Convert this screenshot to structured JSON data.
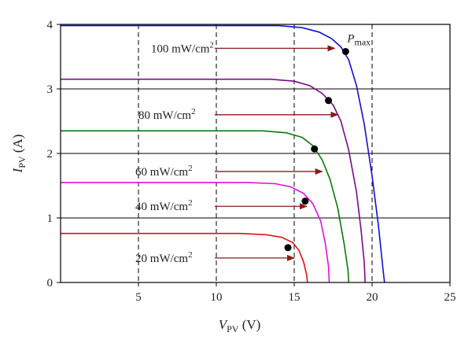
{
  "chart_data": {
    "type": "line",
    "xlabel": {
      "main": "V",
      "sub": "PV",
      "unit": " (V)"
    },
    "ylabel": {
      "main": "I",
      "sub": "PV",
      "unit": " (A)"
    },
    "xlim": [
      0,
      25
    ],
    "ylim": [
      0,
      4
    ],
    "x_ticks": [
      5,
      10,
      15,
      20,
      25
    ],
    "y_ticks": [
      0,
      1,
      2,
      3,
      4
    ],
    "vertical_dashed_gridlines": [
      5,
      10,
      15,
      20
    ],
    "horizontal_gridlines": [
      1,
      2,
      3
    ],
    "colors": {
      "arrow": "#8b1a1a",
      "mpp_dot": "#000000"
    },
    "pmax_label": {
      "main": "P",
      "sub": "max"
    },
    "series": [
      {
        "irradiance": "100",
        "color": "#1010d0",
        "points": [
          [
            0,
            3.98
          ],
          [
            14.0,
            3.98
          ],
          [
            15.5,
            3.95
          ],
          [
            16.6,
            3.88
          ],
          [
            17.4,
            3.78
          ],
          [
            18.0,
            3.65
          ],
          [
            18.5,
            3.45
          ],
          [
            19.0,
            3.05
          ],
          [
            19.5,
            2.45
          ],
          [
            20.0,
            1.65
          ],
          [
            20.4,
            0.9
          ],
          [
            20.7,
            0.2
          ],
          [
            20.8,
            0
          ]
        ],
        "mpp": [
          18.3,
          3.58
        ]
      },
      {
        "irradiance": "80",
        "color": "#7a0a8a",
        "points": [
          [
            0,
            3.15
          ],
          [
            13.5,
            3.15
          ],
          [
            15.0,
            3.12
          ],
          [
            16.0,
            3.05
          ],
          [
            16.8,
            2.93
          ],
          [
            17.5,
            2.75
          ],
          [
            18.0,
            2.5
          ],
          [
            18.5,
            2.05
          ],
          [
            19.0,
            1.4
          ],
          [
            19.3,
            0.8
          ],
          [
            19.5,
            0.3
          ],
          [
            19.55,
            0
          ]
        ],
        "mpp": [
          17.2,
          2.82
        ]
      },
      {
        "irradiance": "60",
        "color": "#0a7a0a",
        "points": [
          [
            0,
            2.35
          ],
          [
            13.0,
            2.35
          ],
          [
            14.5,
            2.32
          ],
          [
            15.5,
            2.25
          ],
          [
            16.2,
            2.12
          ],
          [
            16.8,
            1.9
          ],
          [
            17.3,
            1.6
          ],
          [
            17.8,
            1.15
          ],
          [
            18.2,
            0.6
          ],
          [
            18.45,
            0.2
          ],
          [
            18.5,
            0
          ]
        ],
        "mpp": [
          16.3,
          2.07
        ]
      },
      {
        "irradiance": "40",
        "color": "#e010e0",
        "points": [
          [
            0,
            1.55
          ],
          [
            12.0,
            1.55
          ],
          [
            13.8,
            1.53
          ],
          [
            14.8,
            1.48
          ],
          [
            15.6,
            1.38
          ],
          [
            16.2,
            1.22
          ],
          [
            16.7,
            0.95
          ],
          [
            17.0,
            0.6
          ],
          [
            17.2,
            0.25
          ],
          [
            17.25,
            0
          ]
        ],
        "mpp": [
          15.7,
          1.26
        ]
      },
      {
        "irradiance": "20",
        "color": "#e01010",
        "points": [
          [
            0,
            0.76
          ],
          [
            11.5,
            0.76
          ],
          [
            13.2,
            0.74
          ],
          [
            14.2,
            0.7
          ],
          [
            14.9,
            0.62
          ],
          [
            15.3,
            0.5
          ],
          [
            15.6,
            0.32
          ],
          [
            15.8,
            0.12
          ],
          [
            15.85,
            0
          ]
        ],
        "mpp": [
          14.6,
          0.54
        ]
      }
    ],
    "annotations": [
      {
        "text": "100 mW/cm",
        "sup": "2",
        "label_x": 5.8,
        "label_y": 3.63,
        "arrow_from": 9.9,
        "arrow_to": 17.6,
        "arrow_y": 3.63
      },
      {
        "text": "80 mW/cm",
        "sup": "2",
        "label_x": 5.0,
        "label_y": 2.6,
        "arrow_from": 9.9,
        "arrow_to": 17.8,
        "arrow_y": 2.6
      },
      {
        "text": "60 mW/cm",
        "sup": "2",
        "label_x": 4.8,
        "label_y": 1.72,
        "arrow_from": 9.9,
        "arrow_to": 16.8,
        "arrow_y": 1.72
      },
      {
        "text": "40 mW/cm",
        "sup": "2",
        "label_x": 4.8,
        "label_y": 1.18,
        "arrow_from": 9.9,
        "arrow_to": 15.8,
        "arrow_y": 1.18
      },
      {
        "text": "20 mW/cm",
        "sup": "2",
        "label_x": 4.8,
        "label_y": 0.38,
        "arrow_from": 9.9,
        "arrow_to": 15.0,
        "arrow_y": 0.38
      }
    ]
  }
}
